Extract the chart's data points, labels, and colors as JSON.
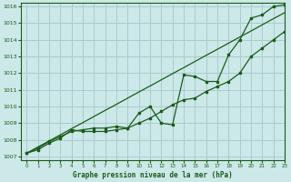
{
  "title": "Graphe pression niveau de la mer (hPa)",
  "background_color": "#cce8e8",
  "grid_color": "#aacccc",
  "line_color": "#1a5c1a",
  "xlim": [
    -0.5,
    23
  ],
  "ylim": [
    1006.8,
    1016.2
  ],
  "xticks": [
    0,
    1,
    2,
    3,
    4,
    5,
    6,
    7,
    8,
    9,
    10,
    11,
    12,
    13,
    14,
    15,
    16,
    17,
    18,
    19,
    20,
    21,
    22,
    23
  ],
  "yticks": [
    1007,
    1008,
    1009,
    1010,
    1011,
    1012,
    1013,
    1014,
    1015,
    1016
  ],
  "series_smooth": [
    1007.2,
    1007.57,
    1007.93,
    1008.3,
    1008.67,
    1009.03,
    1009.4,
    1009.77,
    1010.13,
    1010.5,
    1010.87,
    1011.23,
    1011.6,
    1011.97,
    1012.33,
    1012.7,
    1013.07,
    1013.43,
    1013.8,
    1014.17,
    1014.53,
    1014.9,
    1015.27,
    1015.63
  ],
  "series_mid": [
    1007.2,
    1007.5,
    1007.9,
    1008.2,
    1008.5,
    1008.6,
    1008.7,
    1008.7,
    1008.8,
    1008.7,
    1009.0,
    1009.3,
    1009.7,
    1010.1,
    1010.4,
    1010.5,
    1010.9,
    1011.2,
    1011.5,
    1012.0,
    1013.0,
    1013.5,
    1014.0,
    1014.5
  ],
  "series_volatile": [
    1007.2,
    1007.4,
    1007.8,
    1008.1,
    1008.6,
    1008.5,
    1008.5,
    1008.5,
    1008.6,
    1008.7,
    1009.6,
    1010.0,
    1009.0,
    1008.9,
    1011.9,
    1011.8,
    1011.5,
    1011.5,
    1013.1,
    1014.0,
    1015.3,
    1015.5,
    1016.0,
    1016.1
  ]
}
